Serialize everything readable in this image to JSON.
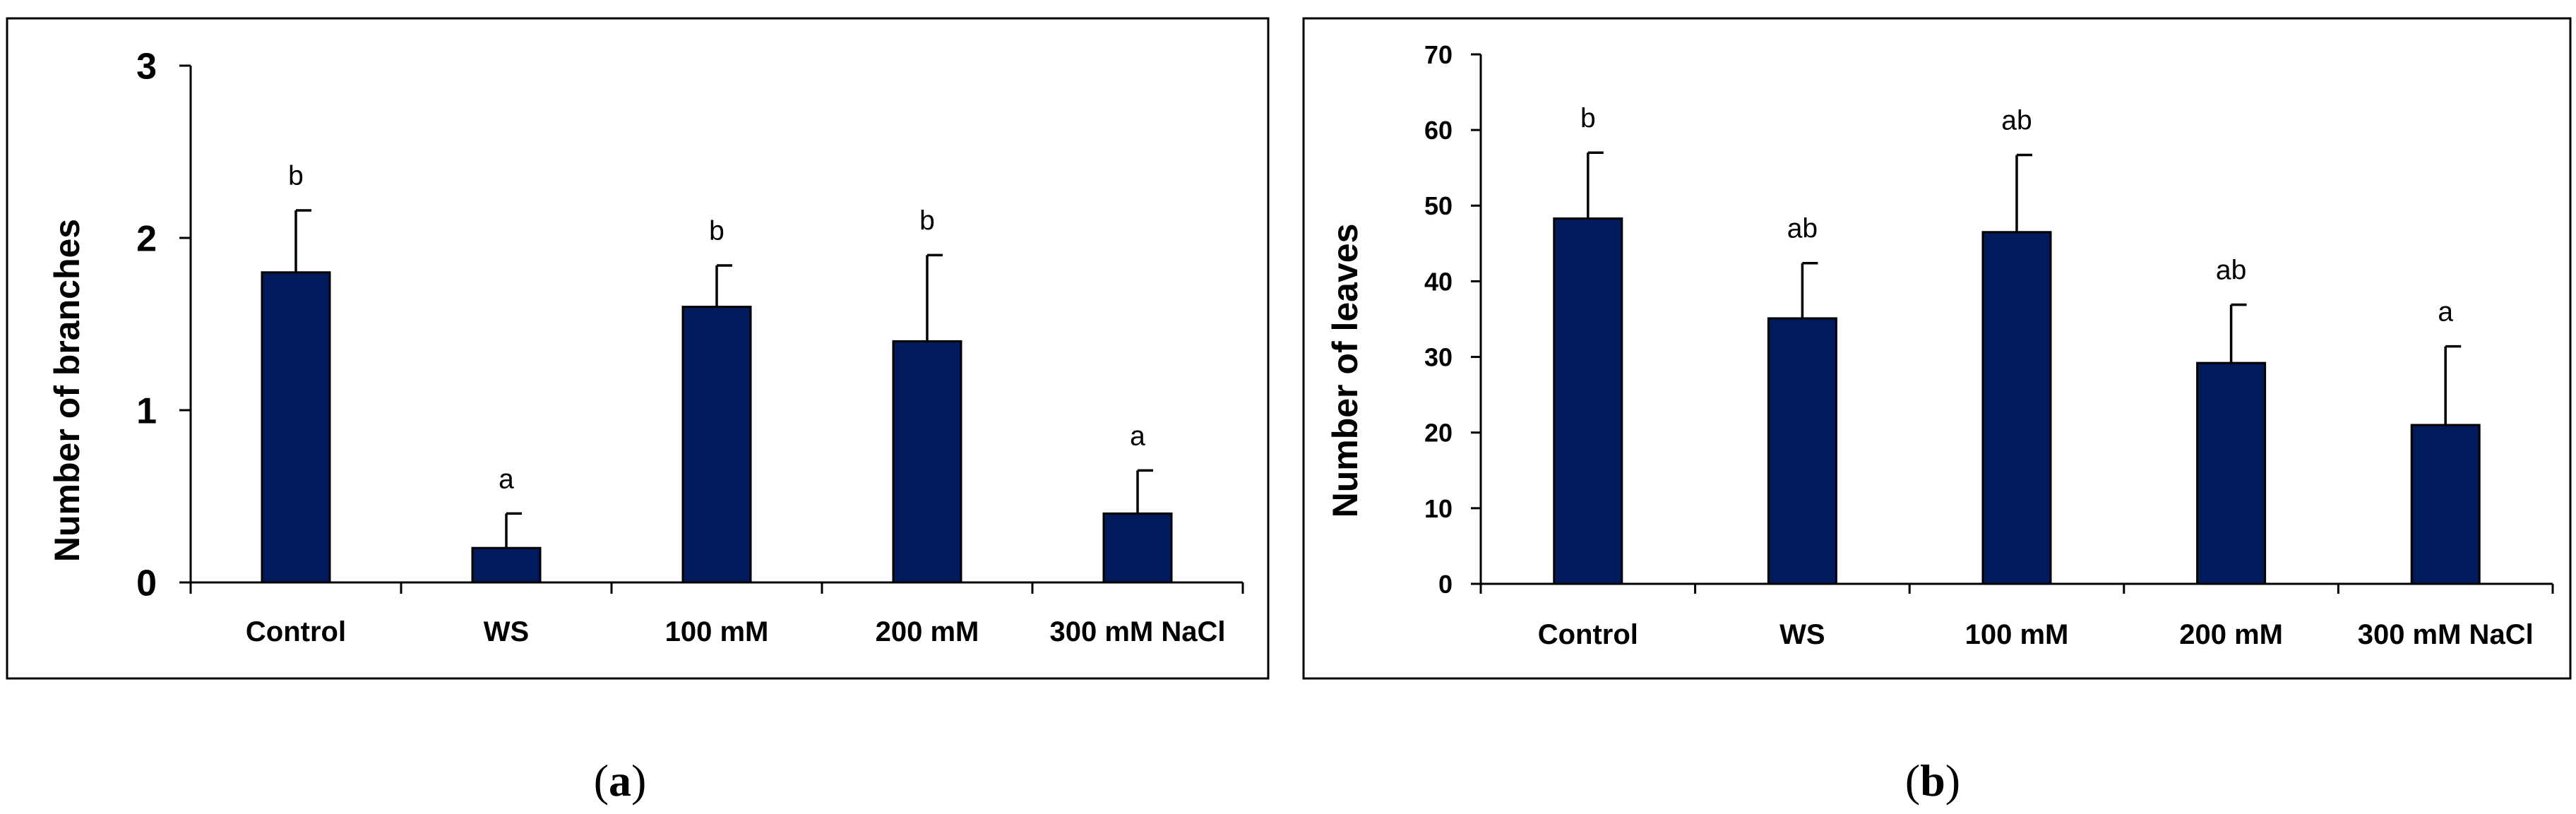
{
  "chart_data": [
    {
      "type": "bar",
      "panel": "a",
      "categories": [
        "Control",
        "WS",
        "100 mM",
        "200 mM",
        "300 mM NaCl"
      ],
      "values": [
        1.8,
        0.2,
        1.6,
        1.4,
        0.4
      ],
      "errors": [
        0.36,
        0.2,
        0.24,
        0.5,
        0.25
      ],
      "significance": [
        "b",
        "a",
        "b",
        "b",
        "a"
      ],
      "xlabel": "",
      "ylabel": "Number of branches",
      "ylim": [
        0,
        3
      ],
      "yticks": [
        0,
        1,
        2,
        3
      ],
      "bar_color": "#001a5c",
      "grid": false,
      "legend": "none"
    },
    {
      "type": "bar",
      "panel": "b",
      "categories": [
        "Control",
        "WS",
        "100 mM",
        "200 mM",
        "300 mM NaCl"
      ],
      "values": [
        48.3,
        35.1,
        46.5,
        29.2,
        21.0
      ],
      "errors": [
        8.7,
        7.3,
        10.2,
        7.7,
        10.4
      ],
      "significance": [
        "b",
        "ab",
        "ab",
        "ab",
        "a"
      ],
      "xlabel": "",
      "ylabel": "Number of leaves",
      "ylim": [
        0,
        70
      ],
      "yticks": [
        0,
        10,
        20,
        30,
        40,
        50,
        60,
        70
      ],
      "bar_color": "#001a5c",
      "grid": false,
      "legend": "none"
    }
  ],
  "captions": {
    "a": {
      "open": "(",
      "letter": "a",
      "close": ")"
    },
    "b": {
      "open": "(",
      "letter": "b",
      "close": ")"
    }
  }
}
